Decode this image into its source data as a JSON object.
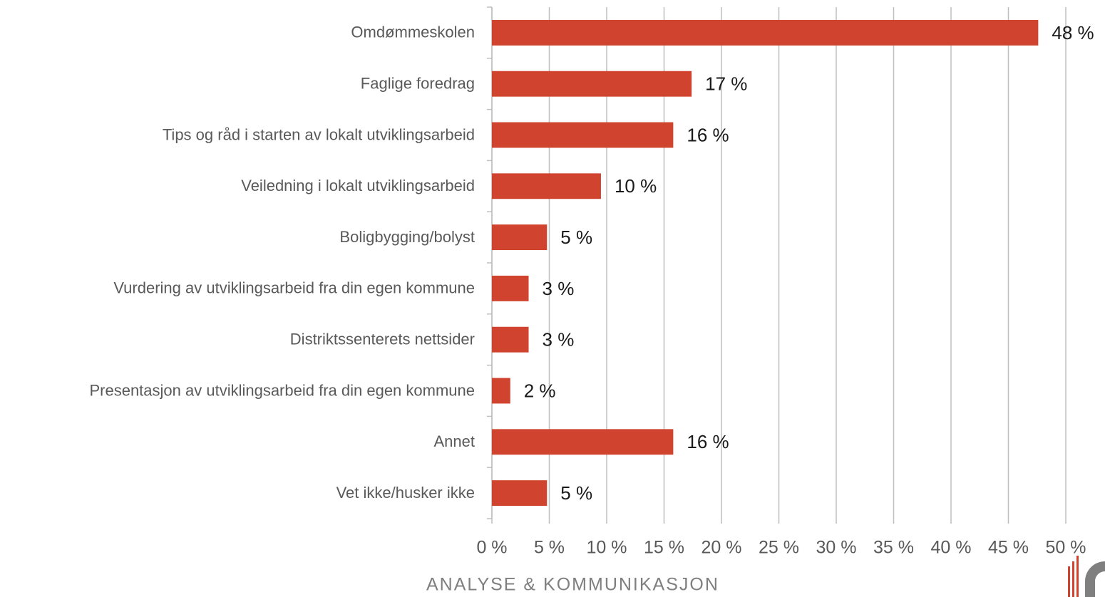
{
  "chart_data": {
    "type": "bar",
    "orientation": "horizontal",
    "categories": [
      "Omdømmeskolen",
      "Faglige foredrag",
      "Tips og råd i starten av lokalt utviklingsarbeid",
      "Veiledning i lokalt utviklingsarbeid",
      "Boligbygging/bolyst",
      "Vurdering av utviklingsarbeid fra din egen kommune",
      "Distriktssenterets nettsider",
      "Presentasjon av utviklingsarbeid fra din egen kommune",
      "Annet",
      "Vet ikke/husker ikke"
    ],
    "values": [
      47.6,
      17.4,
      15.8,
      9.5,
      4.8,
      3.2,
      3.2,
      1.6,
      15.8,
      4.8
    ],
    "value_labels": [
      "48 %",
      "17 %",
      "16 %",
      "10 %",
      "5 %",
      "3 %",
      "3 %",
      "2 %",
      "16 %",
      "5 %"
    ],
    "color": "#d0432e",
    "xlim": [
      0,
      50
    ],
    "xticks": [
      {
        "value": 0,
        "label": "0 %"
      },
      {
        "value": 5,
        "label": "5 %"
      },
      {
        "value": 10,
        "label": "10 %"
      },
      {
        "value": 15,
        "label": "15 %"
      },
      {
        "value": 20,
        "label": "20 %"
      },
      {
        "value": 25,
        "label": "25 %"
      },
      {
        "value": 30,
        "label": "30 %"
      },
      {
        "value": 35,
        "label": "35 %"
      },
      {
        "value": 40,
        "label": "40 %"
      },
      {
        "value": 45,
        "label": "45 %"
      },
      {
        "value": 50,
        "label": "50 %"
      }
    ],
    "grid": true
  },
  "footer": "ANALYSE & KOMMUNIKASJON"
}
